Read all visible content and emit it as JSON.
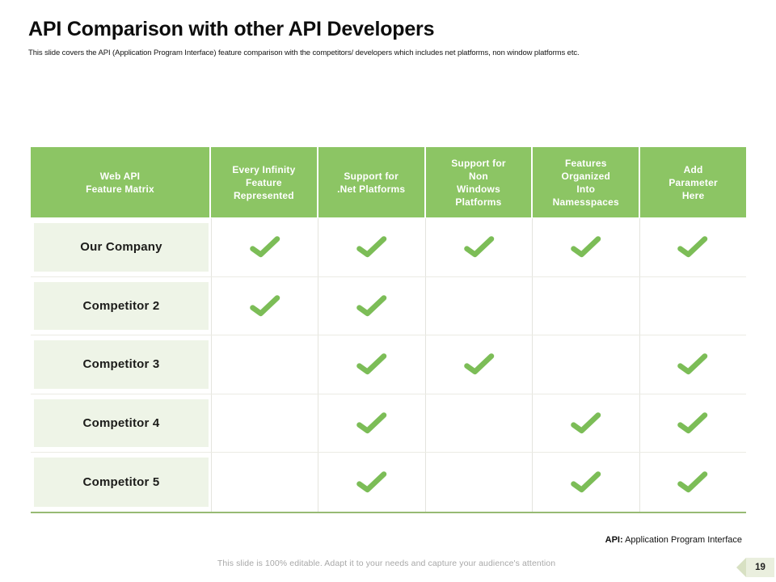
{
  "slide": {
    "title": "API Comparison with other API Developers",
    "subtitle": "This slide covers the API (Application Program Interface) feature comparison with the competitors/ developers which includes net platforms, non window platforms etc.",
    "footnote_label": "API:",
    "footnote_text": " Application Program Interface",
    "editable_note": "This slide is 100% editable. Adapt it to your needs and capture your audience's attention",
    "page_number": "19"
  },
  "colors": {
    "header_green": "#8CC564",
    "check_green": "#7CBD57",
    "row_label_bg": "#EEF4E7",
    "table_bottom_border": "#97BA74",
    "grid_line": "#E4E4DE",
    "badge_bg": "#EAEFDE",
    "note_gray": "#A8A8A8"
  },
  "table": {
    "columns": [
      "Web API\nFeature Matrix",
      "Every Infinity\nFeature\nRepresented",
      "Support for\n.Net Platforms",
      "Support for\nNon\nWindows\nPlatforms",
      "Features\nOrganized\nInto\nNamesspaces",
      "Add\nParameter\nHere"
    ],
    "rows": [
      {
        "label": "Our Company",
        "checks": [
          true,
          true,
          true,
          true,
          true
        ]
      },
      {
        "label": "Competitor 2",
        "checks": [
          true,
          true,
          false,
          false,
          false
        ]
      },
      {
        "label": "Competitor 3",
        "checks": [
          false,
          true,
          true,
          false,
          true
        ]
      },
      {
        "label": "Competitor 4",
        "checks": [
          false,
          true,
          false,
          true,
          true
        ]
      },
      {
        "label": "Competitor 5",
        "checks": [
          false,
          true,
          false,
          true,
          true
        ]
      }
    ]
  }
}
